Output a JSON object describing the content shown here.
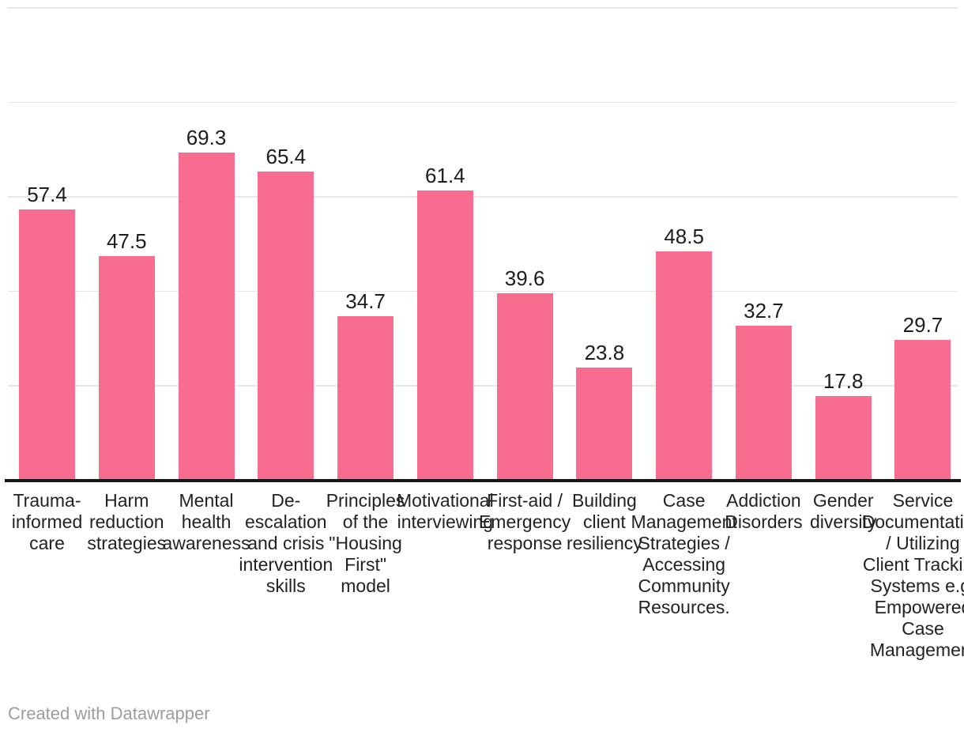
{
  "chart_data": {
    "type": "bar",
    "title": "",
    "subtitle": "",
    "xlabel": "",
    "ylabel": "",
    "ylim": [
      0,
      100
    ],
    "grid": true,
    "gridline_values": [
      20,
      40,
      60,
      80,
      100
    ],
    "legend_position": "none",
    "value_label_format": "one-decimal",
    "categories": [
      "Trauma-informed care",
      "Harm reduction strategies",
      "Mental health awareness",
      "De-escalation and crisis intervention skills",
      "Principles of the \"Housing First\" model",
      "Motivational interviewing",
      "First-aid / Emergency response",
      "Building client resiliency",
      "Case Management Strategies / Accessing Community Resources.",
      "Addiction Disorders",
      "Gender diversity",
      "Service Documentation / Utilizing Client Tracking Systems e.g. Empowered Case Management"
    ],
    "values": [
      57.4,
      47.5,
      69.3,
      65.4,
      34.7,
      61.4,
      39.6,
      23.8,
      48.5,
      32.7,
      17.8,
      29.7
    ],
    "value_labels": [
      "57.4",
      "47.5",
      "69.3",
      "65.4",
      "34.7",
      "61.4",
      "39.6",
      "23.8",
      "48.5",
      "32.7",
      "17.8",
      "29.7"
    ],
    "category_label_lines": [
      [
        "Trauma-",
        "informed",
        "care"
      ],
      [
        "Harm",
        "reduction",
        "strategies"
      ],
      [
        "Mental",
        "health",
        "awareness"
      ],
      [
        "De-",
        "escalation",
        "and crisis",
        "intervention",
        "skills"
      ],
      [
        "Principles",
        "of the",
        "\"Housing",
        "First\"",
        "model"
      ],
      [
        "Motivational",
        "interviewing"
      ],
      [
        "First-aid /",
        "Emergency",
        "response"
      ],
      [
        "Building",
        "client",
        "resiliency"
      ],
      [
        "Case",
        "Management",
        "Strategies /",
        "Accessing",
        "Community",
        "Resources."
      ],
      [
        "Addiction",
        "Disorders"
      ],
      [
        "Gender",
        "diversity"
      ],
      [
        "Service",
        "Documentation",
        "/ Utilizing",
        "Client Tracking",
        "Systems e.g.",
        "Empowered",
        "Case",
        "Management"
      ]
    ],
    "colors": {
      "bar": "#f86c8f",
      "value_label": "#1d1d1d",
      "category_label": "#222222",
      "gridline": "#e8e8e8",
      "baseline": "#161616",
      "background": "#ffffff",
      "attribution": "#9d9d9d"
    }
  },
  "footer": {
    "attribution": "Created with Datawrapper"
  }
}
